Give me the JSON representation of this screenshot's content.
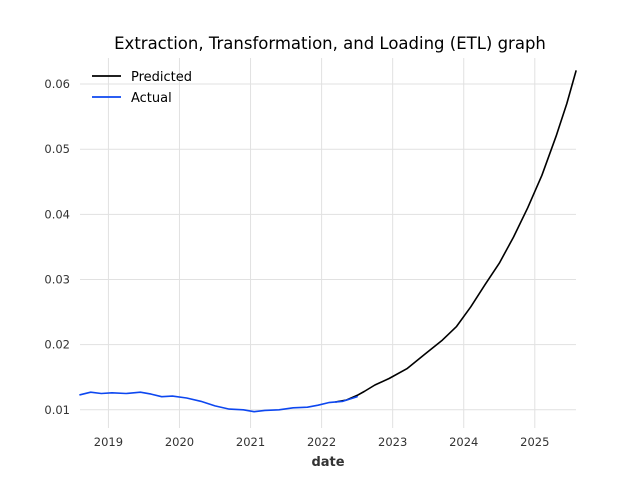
{
  "chart_data": {
    "type": "line",
    "title": "Extraction, Transformation, and Loading (ETL) graph",
    "xlabel": "date",
    "ylabel": "",
    "x_type": "time",
    "xlim": [
      2018.6,
      2025.58
    ],
    "ylim": [
      0.0072,
      0.064
    ],
    "x_ticks": [
      2019,
      2020,
      2021,
      2022,
      2023,
      2024,
      2025
    ],
    "x_tick_labels": [
      "2019",
      "2020",
      "2021",
      "2022",
      "2023",
      "2024",
      "2025"
    ],
    "y_ticks": [
      0.01,
      0.02,
      0.03,
      0.04,
      0.05,
      0.06
    ],
    "y_tick_labels": [
      "0.01",
      "0.02",
      "0.03",
      "0.04",
      "0.05",
      "0.06"
    ],
    "grid": true,
    "legend_position": "top-left",
    "series": [
      {
        "name": "Predicted",
        "color": "#000000",
        "points": [
          [
            2022.2,
            0.0112
          ],
          [
            2022.35,
            0.0115
          ],
          [
            2022.5,
            0.0122
          ],
          [
            2022.6,
            0.0128
          ],
          [
            2022.75,
            0.0138
          ],
          [
            2022.95,
            0.0148
          ],
          [
            2023.2,
            0.0163
          ],
          [
            2023.45,
            0.0185
          ],
          [
            2023.7,
            0.0207
          ],
          [
            2023.9,
            0.0228
          ],
          [
            2024.1,
            0.0258
          ],
          [
            2024.3,
            0.0292
          ],
          [
            2024.5,
            0.0325
          ],
          [
            2024.7,
            0.0365
          ],
          [
            2024.9,
            0.041
          ],
          [
            2025.1,
            0.046
          ],
          [
            2025.3,
            0.052
          ],
          [
            2025.45,
            0.057
          ],
          [
            2025.58,
            0.062
          ]
        ]
      },
      {
        "name": "Actual",
        "color": "#0d47f0",
        "points": [
          [
            2018.6,
            0.0123
          ],
          [
            2018.75,
            0.0127
          ],
          [
            2018.9,
            0.0125
          ],
          [
            2019.05,
            0.0126
          ],
          [
            2019.25,
            0.0125
          ],
          [
            2019.45,
            0.0127
          ],
          [
            2019.6,
            0.0124
          ],
          [
            2019.75,
            0.012
          ],
          [
            2019.9,
            0.0121
          ],
          [
            2020.1,
            0.0118
          ],
          [
            2020.3,
            0.0113
          ],
          [
            2020.5,
            0.0106
          ],
          [
            2020.7,
            0.0101
          ],
          [
            2020.9,
            0.01
          ],
          [
            2021.05,
            0.0097
          ],
          [
            2021.2,
            0.0099
          ],
          [
            2021.4,
            0.01
          ],
          [
            2021.6,
            0.0103
          ],
          [
            2021.8,
            0.0104
          ],
          [
            2021.95,
            0.0107
          ],
          [
            2022.1,
            0.0111
          ],
          [
            2022.3,
            0.0113
          ],
          [
            2022.5,
            0.012
          ]
        ]
      }
    ]
  }
}
